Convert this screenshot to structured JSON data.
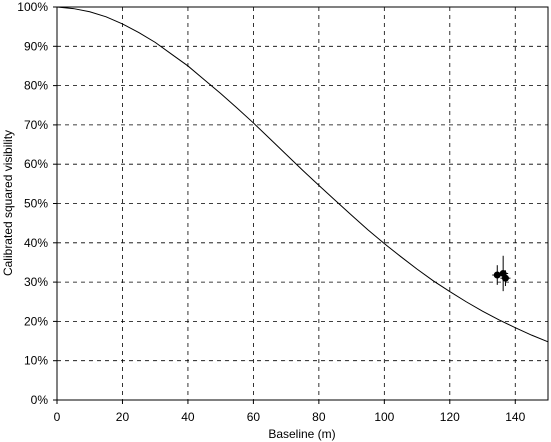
{
  "chart_data": {
    "type": "line",
    "title": "",
    "xlabel": "Baseline (m)",
    "ylabel": "Calibrated squared visibility",
    "xlim": [
      0,
      150
    ],
    "ylim": [
      0,
      1
    ],
    "x_ticks": [
      0,
      20,
      40,
      60,
      80,
      100,
      120,
      140
    ],
    "x_tick_labels": [
      "0",
      "20",
      "40",
      "60",
      "80",
      "100",
      "120",
      "140"
    ],
    "y_ticks": [
      0,
      0.1,
      0.2,
      0.3,
      0.4,
      0.5,
      0.6,
      0.7,
      0.8,
      0.9,
      1.0
    ],
    "y_tick_labels": [
      "0%",
      "10%",
      "20%",
      "30%",
      "40%",
      "50%",
      "60%",
      "70%",
      "80%",
      "90%",
      "100%"
    ],
    "grid": true,
    "series": [
      {
        "kind": "line",
        "x": [
          0,
          5,
          10,
          15,
          20,
          25,
          30,
          35,
          40,
          45,
          50,
          55,
          60,
          65,
          70,
          75,
          80,
          85,
          90,
          95,
          100,
          105,
          110,
          115,
          120,
          125,
          130,
          135,
          140,
          145,
          150
        ],
        "y": [
          1.0,
          0.996,
          0.988,
          0.975,
          0.957,
          0.935,
          0.91,
          0.88,
          0.85,
          0.815,
          0.78,
          0.743,
          0.705,
          0.665,
          0.625,
          0.585,
          0.546,
          0.508,
          0.47,
          0.433,
          0.398,
          0.365,
          0.333,
          0.303,
          0.276,
          0.25,
          0.226,
          0.204,
          0.184,
          0.165,
          0.148
        ]
      },
      {
        "kind": "scatter",
        "x": [
          134.5,
          136.3,
          137.0
        ],
        "y": [
          0.318,
          0.322,
          0.31
        ],
        "yerr": [
          0.025,
          0.045,
          0.02
        ]
      }
    ],
    "colors": {
      "line": "#000000",
      "points": "#000000",
      "grid": "#000000"
    }
  }
}
